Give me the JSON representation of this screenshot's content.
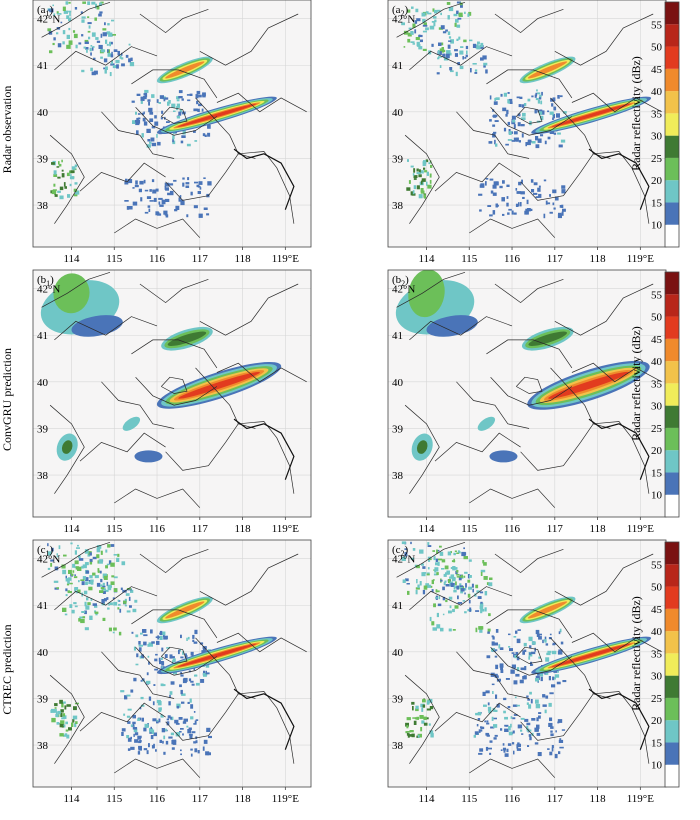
{
  "chart_data": {
    "type": "heatmap",
    "variable_label": "Radar reflectivity (dBz)",
    "colorbar": {
      "ticks": [
        10,
        15,
        20,
        25,
        30,
        35,
        40,
        45,
        50,
        55
      ],
      "colors": [
        "#ffffff",
        "#4a74b8",
        "#6fc6c6",
        "#6cbf59",
        "#3f7a33",
        "#f0ec5a",
        "#f2c24a",
        "#f08a2c",
        "#e23b1f",
        "#b8261a",
        "#7a1212"
      ]
    },
    "x_ticks": [
      "114",
      "115",
      "116",
      "117",
      "118",
      "119°E"
    ],
    "y_ticks": [
      "42°N",
      "41",
      "40",
      "39",
      "38"
    ],
    "x_values": [
      114,
      115,
      116,
      117,
      118,
      119
    ],
    "y_values": [
      42,
      41,
      40,
      39,
      38
    ],
    "xlim": [
      113.1,
      119.6
    ],
    "ylim": [
      37.1,
      42.4
    ],
    "rows": [
      {
        "label": "Radar observation",
        "panels": [
          {
            "tag_main": "(a",
            "tag_sub": "1",
            "tag_end": ")"
          },
          {
            "tag_main": "(a",
            "tag_sub": "2",
            "tag_end": ")"
          }
        ]
      },
      {
        "label": "ConvGRU prediction",
        "panels": [
          {
            "tag_main": "(b",
            "tag_sub": "1",
            "tag_end": ")"
          },
          {
            "tag_main": "(b",
            "tag_sub": "2",
            "tag_end": ")"
          }
        ]
      },
      {
        "label": "CTREC prediction",
        "panels": [
          {
            "tag_main": "(c",
            "tag_sub": "1",
            "tag_end": ")"
          },
          {
            "tag_main": "(c",
            "tag_sub": "2",
            "tag_end": ")"
          }
        ]
      }
    ]
  }
}
